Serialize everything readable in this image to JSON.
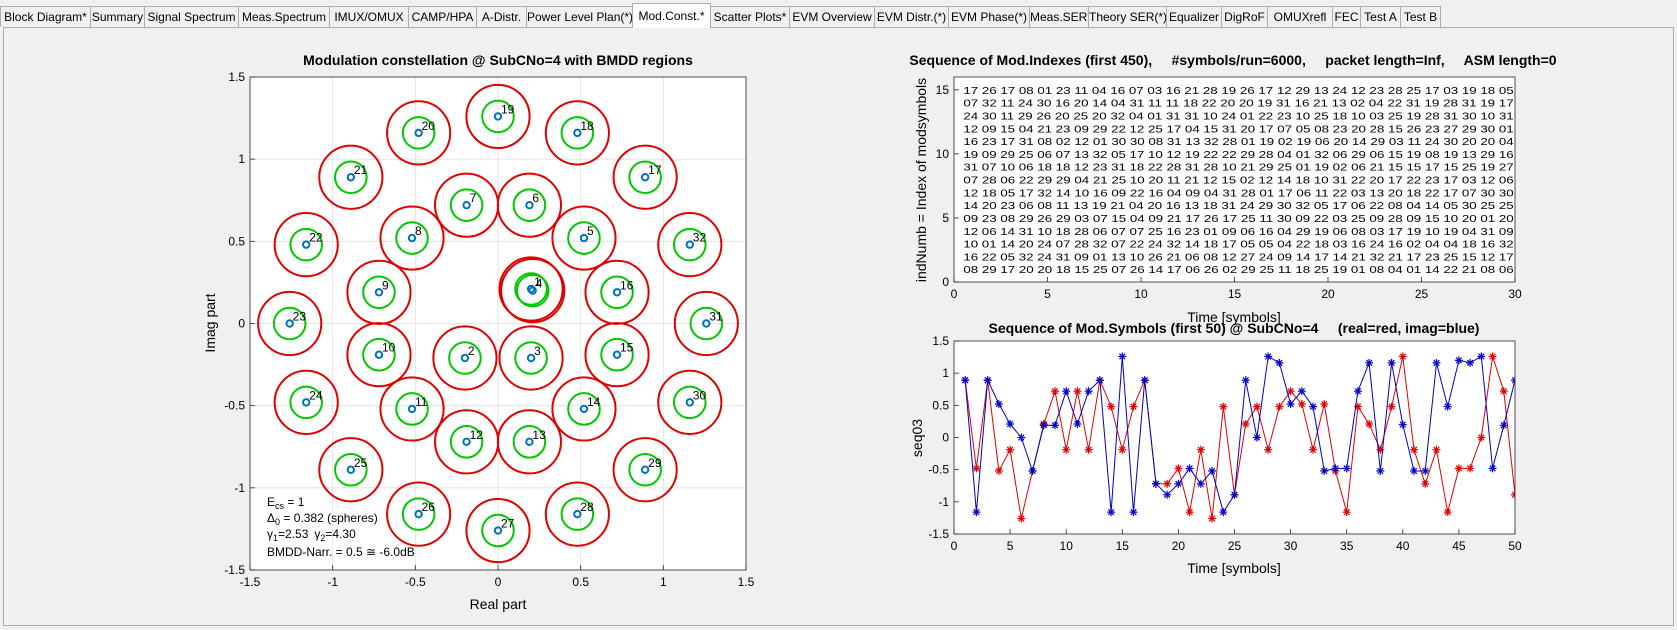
{
  "tabs": [
    {
      "label": "Block Diagram*",
      "active": false
    },
    {
      "label": "Summary",
      "active": false
    },
    {
      "label": "Signal Spectrum",
      "active": false
    },
    {
      "label": "Meas.Spectrum",
      "active": false
    },
    {
      "label": "IMUX/OMUX",
      "active": false
    },
    {
      "label": "CAMP/HPA",
      "active": false
    },
    {
      "label": "A-Distr.",
      "active": false
    },
    {
      "label": "Power Level Plan(*)",
      "active": false
    },
    {
      "label": "Mod.Const.*",
      "active": true
    },
    {
      "label": "Scatter Plots*",
      "active": false
    },
    {
      "label": "EVM Overview",
      "active": false
    },
    {
      "label": "EVM Distr.(*)",
      "active": false
    },
    {
      "label": "EVM Phase(*)",
      "active": false
    },
    {
      "label": "Meas.SER*",
      "active": false
    },
    {
      "label": "Theory SER(*)",
      "active": false
    },
    {
      "label": "Equalizer",
      "active": false
    },
    {
      "label": "DigRoF",
      "active": false
    },
    {
      "label": "OMUXrefl",
      "active": false
    },
    {
      "label": "FEC",
      "active": false
    },
    {
      "label": "Test A",
      "active": false
    },
    {
      "label": "Test B",
      "active": false
    }
  ],
  "chart_data": [
    {
      "type": "scatter",
      "title": "Modulation constellation @ SubCNo=4 with BMDD regions",
      "xlabel": "Real part",
      "ylabel": "Imag part",
      "xlim": [
        -1.5,
        1.5
      ],
      "ylim": [
        -1.5,
        1.5
      ],
      "xticks": [
        "-1.5",
        "-1",
        "-0.5",
        "0",
        "0.5",
        "1",
        "1.5"
      ],
      "yticks": [
        "-1.5",
        "-1",
        "-0.5",
        "0",
        "0.5",
        "1",
        "1.5"
      ],
      "grid": true,
      "colors": {
        "point": "#0072bd",
        "inner_region": "#00c800",
        "outer_region": "#e00000"
      },
      "points": [
        {
          "label": "1",
          "x": 0.2,
          "y": 0.21
        },
        {
          "label": "2",
          "x": -0.2,
          "y": -0.21
        },
        {
          "label": "3",
          "x": 0.2,
          "y": -0.21
        },
        {
          "label": "4",
          "x": 0.21,
          "y": 0.2
        },
        {
          "label": "5",
          "x": 0.52,
          "y": 0.52
        },
        {
          "label": "6",
          "x": 0.19,
          "y": 0.72
        },
        {
          "label": "7",
          "x": -0.19,
          "y": 0.72
        },
        {
          "label": "8",
          "x": -0.52,
          "y": 0.52
        },
        {
          "label": "9",
          "x": -0.72,
          "y": 0.19
        },
        {
          "label": "10",
          "x": -0.72,
          "y": -0.19
        },
        {
          "label": "11",
          "x": -0.52,
          "y": -0.52
        },
        {
          "label": "12",
          "x": -0.19,
          "y": -0.72
        },
        {
          "label": "13",
          "x": 0.19,
          "y": -0.72
        },
        {
          "label": "14",
          "x": 0.52,
          "y": -0.52
        },
        {
          "label": "15",
          "x": 0.72,
          "y": -0.19
        },
        {
          "label": "16",
          "x": 0.72,
          "y": 0.19
        },
        {
          "label": "17",
          "x": 0.89,
          "y": 0.89
        },
        {
          "label": "18",
          "x": 0.48,
          "y": 1.16
        },
        {
          "label": "19",
          "x": 0.0,
          "y": 1.26
        },
        {
          "label": "20",
          "x": -0.48,
          "y": 1.16
        },
        {
          "label": "21",
          "x": -0.89,
          "y": 0.89
        },
        {
          "label": "22",
          "x": -1.16,
          "y": 0.48
        },
        {
          "label": "23",
          "x": -1.26,
          "y": 0.0
        },
        {
          "label": "24",
          "x": -1.16,
          "y": -0.48
        },
        {
          "label": "25",
          "x": -0.89,
          "y": -0.89
        },
        {
          "label": "26",
          "x": -0.48,
          "y": -1.16
        },
        {
          "label": "27",
          "x": 0.0,
          "y": -1.26
        },
        {
          "label": "28",
          "x": 0.48,
          "y": -1.16
        },
        {
          "label": "29",
          "x": 0.89,
          "y": -0.89
        },
        {
          "label": "30",
          "x": 1.16,
          "y": -0.48
        },
        {
          "label": "31",
          "x": 1.26,
          "y": 0.0
        },
        {
          "label": "32",
          "x": 1.16,
          "y": 0.48
        }
      ],
      "outer_radius": 0.191,
      "inner_radius": 0.0955,
      "annotation": {
        "ecs_main": "E",
        "ecs_sub": "cs",
        "ecs_rest": " = 1",
        "delta_main": "Δ",
        "delta_sub": "0",
        "delta_rest": " = 0.382 (spheres)",
        "g1_main": "γ",
        "g1_sub": "1",
        "g1_rest": "=2.53",
        "g2_main": "γ",
        "g2_sub": "2",
        "g2_rest": "=4.30",
        "bmdd": "BMDD-Narr. = 0.5 ≅ -6.0dB"
      }
    },
    {
      "type": "table",
      "title": "Sequence of Mod.Indexes (first 450),     #symbols/run=6000,     packet length=Inf,     ASM length=0",
      "xlabel": "Time [symbols]",
      "ylabel": "indNumb = Index of modsymbols",
      "xlim": [
        0,
        30
      ],
      "ylim": [
        0,
        16
      ],
      "xticks": [
        "0",
        "5",
        "10",
        "15",
        "20",
        "25",
        "30"
      ],
      "yticks": [
        "0",
        "5",
        "10",
        "15"
      ],
      "rows": [
        "17 26 17 08 01 23 11 04 16 07 03 16 21 28 19 26 17 12 29 13 24 12 23 28 25 17 03 19 18 05",
        "07 32 11 24 30 16 20 14 04 31 11 11 18 22 20 20 19 31 16 21 13 02 04 22 31 19 28 31 19 17",
        "24 30 11 29 26 20 25 20 32 04 01 31 31 10 24 01 22 23 10 25 18 10 03 25 19 28 31 30 10 31",
        "12 09 15 04 21 23 09 29 22 12 25 17 04 15 31 20 17 07 05 08 23 20 28 15 26 23 27 29 30 01",
        "16 23 17 31 08 02 12 01 30 30 08 31 13 32 28 01 19 02 19 06 20 14 29 03 11 24 30 20 20 04",
        "19 09 29 25 06 07 13 32 05 17 10 12 19 22 22 29 28 04 01 32 06 29 06 15 19 08 19 13 29 16",
        "31 07 10 06 18 18 12 23 31 18 22 28 31 28 10 21 29 25 01 19 02 06 21 15 15 17 15 25 19 27",
        "07 28 06 22 29 29 04 21 25 10 20 11 21 12 15 02 12 14 18 10 31 22 20 17 22 23 17 03 12 06",
        "12 18 05 17 32 14 10 16 09 22 16 04 09 04 31 28 01 17 06 11 22 03 13 20 18 22 17 07 30 30",
        "14 20 23 06 08 11 13 19 21 04 20 16 13 18 31 24 29 30 32 05 17 06 22 08 04 14 05 30 25 25",
        "09 23 08 29 26 29 03 07 15 04 09 21 17 26 17 25 11 30 09 22 03 25 09 28 09 15 10 20 01 20",
        "12 06 14 31 10 18 28 06 07 07 25 16 23 01 09 06 16 04 29 19 06 08 03 17 19 10 19 04 31 09",
        "10 01 14 20 24 07 28 32 07 22 24 32 14 18 17 05 05 04 22 18 03 16 24 16 02 04 04 18 16 32",
        "16 22 05 32 24 31 09 01 13 10 26 21 06 08 12 27 24 09 14 17 14 21 32 21 17 23 25 15 12 17",
        "08 29 17 20 20 18 15 25 07 26 14 17 06 26 02 29 25 11 18 25 19 01 08 04 01 14 22 21 08 06"
      ]
    },
    {
      "type": "line",
      "title": "Sequence of Mod.Symbols (first 50) @ SubCNo=4     (real=red, imag=blue)",
      "xlabel": "Time [symbols]",
      "ylabel": "seq03",
      "xlim": [
        0,
        50
      ],
      "ylim": [
        -1.5,
        1.5
      ],
      "xticks": [
        "0",
        "5",
        "10",
        "15",
        "20",
        "25",
        "30",
        "35",
        "40",
        "45",
        "50"
      ],
      "yticks": [
        "-1.5",
        "-1",
        "-0.5",
        "0",
        "0.5",
        "1",
        "1.5"
      ],
      "colors": {
        "real": "#e00000",
        "imag": "#0000c8"
      },
      "x": [
        1,
        2,
        3,
        4,
        5,
        6,
        7,
        8,
        9,
        10,
        11,
        12,
        13,
        14,
        15,
        16,
        17,
        18,
        19,
        20,
        21,
        22,
        23,
        24,
        25,
        26,
        27,
        28,
        29,
        30,
        31,
        32,
        33,
        34,
        35,
        36,
        37,
        38,
        39,
        40,
        41,
        42,
        43,
        44,
        45,
        46,
        47,
        48,
        49,
        50
      ],
      "series": [
        {
          "key": "real",
          "values": [
            0.89,
            -0.48,
            0.89,
            -0.52,
            -0.19,
            -1.26,
            -0.52,
            0.21,
            0.72,
            -0.19,
            0.72,
            -0.19,
            0.89,
            0.48,
            -0.19,
            0.48,
            0.89,
            -0.72,
            -0.72,
            -0.48,
            -1.16,
            -0.19,
            -1.26,
            0.48,
            -0.89,
            0.21,
            0.48,
            -0.19,
            0.48,
            0.72,
            0.52,
            -0.19,
            0.52,
            -0.52,
            -1.16,
            0.48,
            0.21,
            -0.19,
            0.48,
            1.26,
            -0.19,
            -0.72,
            -0.19,
            -1.16,
            -0.48,
            -0.48,
            0.0,
            1.26,
            0.72,
            -0.89
          ]
        },
        {
          "key": "imag",
          "values": [
            0.89,
            -1.16,
            0.89,
            0.52,
            0.21,
            0.0,
            -0.52,
            0.19,
            0.19,
            0.72,
            0.21,
            0.72,
            0.89,
            -1.16,
            1.26,
            -1.16,
            0.89,
            -0.72,
            -0.89,
            -0.72,
            -0.48,
            -0.72,
            -0.52,
            -1.16,
            -0.89,
            0.89,
            0.0,
            1.26,
            1.16,
            0.52,
            0.72,
            0.48,
            -0.52,
            -0.48,
            -0.48,
            0.72,
            1.16,
            -0.52,
            1.16,
            0.2,
            -0.52,
            -0.52,
            1.16,
            0.48,
            1.2,
            1.16,
            1.26,
            -0.48,
            0.19,
            0.89
          ]
        }
      ]
    }
  ]
}
